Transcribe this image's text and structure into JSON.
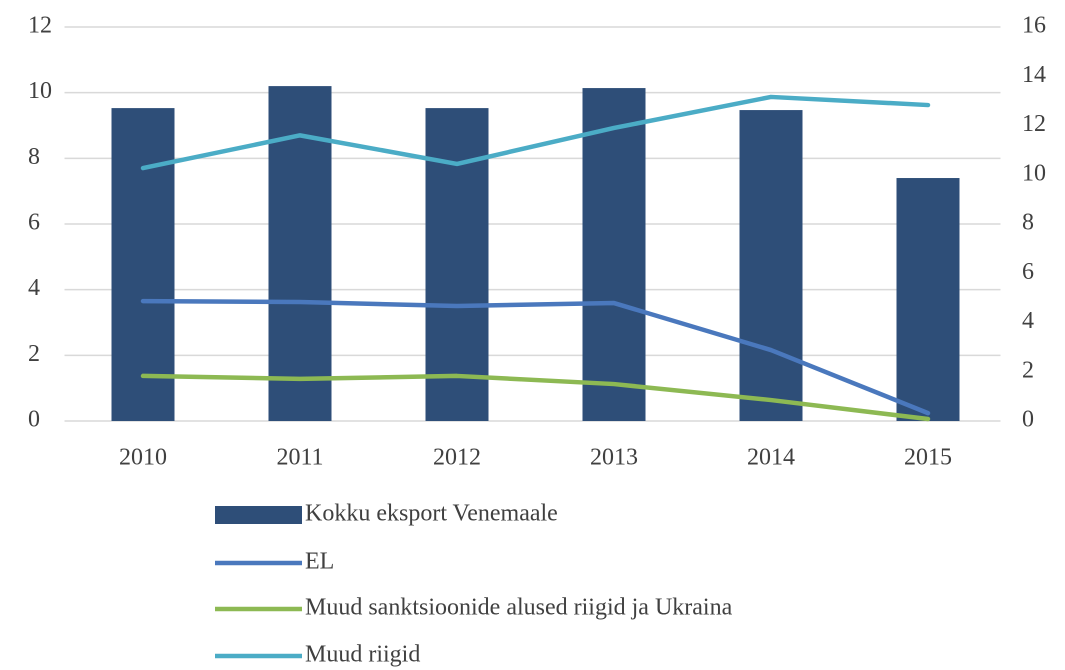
{
  "chart_data": {
    "type": "bar+line",
    "categories": [
      "2010",
      "2011",
      "2012",
      "2013",
      "2014",
      "2015"
    ],
    "series": [
      {
        "name": "Kokku eksport Venemaale",
        "type": "bar",
        "color": "#2e4e78",
        "values": [
          9.53,
          10.2,
          9.53,
          10.14,
          9.47,
          7.4
        ]
      },
      {
        "name": "EL",
        "type": "line",
        "axis": "y2",
        "color": "#4a78bd",
        "values": [
          4.87,
          4.83,
          4.67,
          4.79,
          2.88,
          0.32
        ]
      },
      {
        "name": "Muud sanktsioonide alused riigid ja Ukraina",
        "type": "line",
        "axis": "y2",
        "color": "#8db953",
        "values": [
          1.83,
          1.71,
          1.83,
          1.5,
          0.85,
          0.08
        ]
      },
      {
        "name": "Muud riigid",
        "type": "line",
        "axis": "y2",
        "color": "#4bacc6",
        "values": [
          10.27,
          11.6,
          10.44,
          11.9,
          13.16,
          12.83
        ]
      }
    ],
    "ylim": [
      0,
      12
    ],
    "yticks": [
      0,
      2,
      4,
      6,
      8,
      10,
      12
    ],
    "y2lim": [
      0,
      16
    ],
    "y2ticks": [
      0,
      2,
      4,
      6,
      8,
      10,
      12,
      14,
      16
    ],
    "grid": true,
    "legend": "bottom"
  }
}
